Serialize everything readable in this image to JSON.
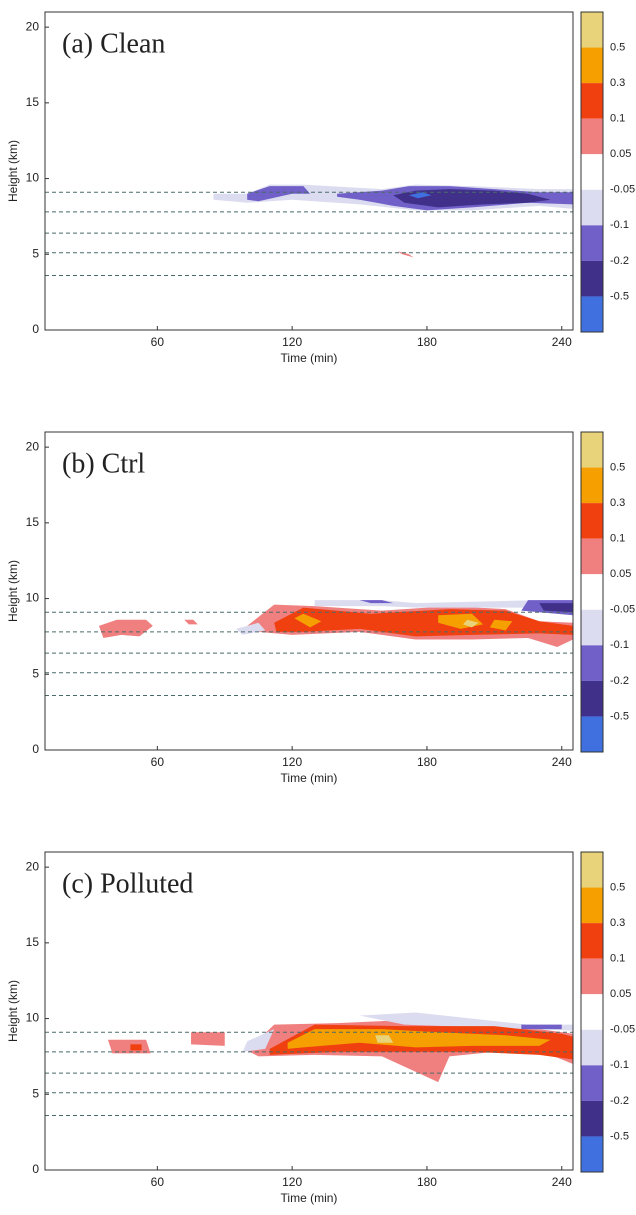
{
  "chart_data": [
    {
      "type": "contour",
      "title": "(a) Clean",
      "xlabel": "Time (min)",
      "ylabel": "Height (km)",
      "xlim": [
        10,
        245
      ],
      "ylim": [
        0,
        21
      ],
      "xticks": [
        60,
        120,
        180,
        240
      ],
      "yticks": [
        0,
        5,
        10,
        15,
        20
      ],
      "hlines": [
        9.1,
        7.8,
        6.4,
        5.1,
        3.6
      ],
      "hline_color": "#4a6a6a",
      "colorbar": {
        "levels": [
          0.5,
          0.3,
          0.1,
          0.05,
          -0.05,
          -0.1,
          -0.2,
          -0.5
        ],
        "colors": [
          "#e8d27a",
          "#f5a000",
          "#f04010",
          "#f08080",
          "#ffffff",
          "#dcdcf0",
          "#7060c8",
          "#40308a",
          "#4070e0"
        ]
      },
      "patches": [
        {
          "value": -0.07,
          "x": [
            85,
            100,
            110,
            125,
            160,
            175,
            200,
            230,
            245,
            245,
            230,
            200,
            175,
            150,
            120,
            100,
            85
          ],
          "y": [
            9.0,
            9.0,
            9.6,
            9.6,
            9.3,
            9.6,
            9.5,
            9.3,
            9.3,
            8.0,
            8.2,
            7.9,
            7.9,
            8.3,
            8.6,
            8.4,
            8.6
          ]
        },
        {
          "value": -0.15,
          "x": [
            100,
            110,
            125,
            128,
            120,
            105,
            100
          ],
          "y": [
            9.0,
            9.5,
            9.5,
            9.0,
            9.0,
            8.5,
            8.6
          ]
        },
        {
          "value": -0.15,
          "x": [
            140,
            160,
            172,
            190,
            210,
            230,
            245,
            245,
            225,
            200,
            180,
            165,
            150,
            140
          ],
          "y": [
            9.0,
            9.2,
            9.5,
            9.5,
            9.3,
            9.1,
            9.1,
            8.3,
            8.4,
            8.1,
            7.9,
            8.2,
            8.6,
            8.8
          ]
        },
        {
          "value": -0.3,
          "x": [
            165,
            175,
            190,
            210,
            225,
            235,
            225,
            205,
            185,
            170
          ],
          "y": [
            8.9,
            9.2,
            9.3,
            9.2,
            9.0,
            8.6,
            8.4,
            8.3,
            8.1,
            8.4
          ]
        },
        {
          "value": -0.6,
          "x": [
            172,
            178,
            182,
            176
          ],
          "y": [
            8.9,
            9.1,
            8.9,
            8.7
          ]
        },
        {
          "value": 0.07,
          "x": [
            167,
            172,
            174,
            169
          ],
          "y": [
            5.2,
            5.0,
            4.8,
            5.0
          ]
        }
      ]
    },
    {
      "type": "contour",
      "title": "(b) Ctrl",
      "xlabel": "Time (min)",
      "ylabel": "Height (km)",
      "xlim": [
        10,
        245
      ],
      "ylim": [
        0,
        21
      ],
      "xticks": [
        60,
        120,
        180,
        240
      ],
      "yticks": [
        0,
        5,
        10,
        15,
        20
      ],
      "hlines": [
        9.1,
        7.8,
        6.4,
        5.1,
        3.6
      ],
      "hline_color": "#4a6a6a",
      "colorbar": {
        "levels": [
          0.5,
          0.3,
          0.1,
          0.05,
          -0.05,
          -0.1,
          -0.2,
          -0.5
        ],
        "colors": [
          "#e8d27a",
          "#f5a000",
          "#f04010",
          "#f08080",
          "#ffffff",
          "#dcdcf0",
          "#7060c8",
          "#40308a",
          "#4070e0"
        ]
      },
      "patches": [
        {
          "value": 0.07,
          "x": [
            34,
            42,
            55,
            58,
            52,
            44,
            36
          ],
          "y": [
            8.2,
            8.6,
            8.6,
            8.2,
            7.5,
            7.6,
            7.4
          ]
        },
        {
          "value": 0.07,
          "x": [
            72,
            76,
            78,
            74
          ],
          "y": [
            8.6,
            8.6,
            8.3,
            8.3
          ]
        },
        {
          "value": 0.07,
          "x": [
            100,
            112,
            130,
            160,
            190,
            215,
            230,
            245,
            245,
            238,
            225,
            200,
            175,
            150,
            120,
            105
          ],
          "y": [
            8.2,
            9.6,
            9.5,
            9.2,
            9.5,
            9.3,
            8.5,
            8.4,
            7.3,
            6.8,
            7.4,
            7.3,
            7.3,
            7.8,
            7.6,
            7.8
          ]
        },
        {
          "value": -0.07,
          "x": [
            95,
            105,
            108,
            98
          ],
          "y": [
            8.0,
            8.4,
            7.9,
            7.6
          ]
        },
        {
          "value": -0.07,
          "x": [
            130,
            160,
            175,
            230,
            245,
            245,
            230,
            175,
            160,
            130
          ],
          "y": [
            9.9,
            9.9,
            9.7,
            9.9,
            9.9,
            9.4,
            9.4,
            9.4,
            9.5,
            9.5
          ]
        },
        {
          "value": -0.15,
          "x": [
            150,
            160,
            165,
            155
          ],
          "y": [
            9.9,
            9.9,
            9.7,
            9.7
          ]
        },
        {
          "value": -0.15,
          "x": [
            225,
            245,
            245,
            222
          ],
          "y": [
            9.9,
            9.9,
            8.9,
            9.2
          ]
        },
        {
          "value": -0.3,
          "x": [
            230,
            245,
            245,
            232
          ],
          "y": [
            9.7,
            9.7,
            9.1,
            9.2
          ]
        },
        {
          "value": 0.2,
          "x": [
            112,
            125,
            155,
            190,
            215,
            230,
            245,
            245,
            230,
            200,
            175,
            150,
            125,
            113
          ],
          "y": [
            8.4,
            9.4,
            9.0,
            9.3,
            9.2,
            8.5,
            8.2,
            7.6,
            7.7,
            7.6,
            7.5,
            8.0,
            7.8,
            7.8
          ]
        },
        {
          "value": 0.4,
          "x": [
            125,
            133,
            128,
            121
          ],
          "y": [
            9.0,
            8.5,
            8.1,
            8.7
          ]
        },
        {
          "value": 0.4,
          "x": [
            185,
            200,
            205,
            195,
            185
          ],
          "y": [
            8.9,
            9.0,
            8.3,
            8.0,
            8.4
          ]
        },
        {
          "value": 0.4,
          "x": [
            210,
            218,
            215,
            208
          ],
          "y": [
            8.6,
            8.5,
            7.9,
            8.1
          ]
        },
        {
          "value": 0.6,
          "x": [
            198,
            203,
            200,
            196
          ],
          "y": [
            8.6,
            8.4,
            8.1,
            8.3
          ]
        }
      ]
    },
    {
      "type": "contour",
      "title": "(c) Polluted",
      "xlabel": "Time (min)",
      "ylabel": "Height (km)",
      "xlim": [
        10,
        245
      ],
      "ylim": [
        0,
        21
      ],
      "xticks": [
        60,
        120,
        180,
        240
      ],
      "yticks": [
        0,
        5,
        10,
        15,
        20
      ],
      "hlines": [
        9.1,
        7.8,
        6.4,
        5.1,
        3.6
      ],
      "hline_color": "#4a6a6a",
      "colorbar": {
        "levels": [
          0.5,
          0.3,
          0.1,
          0.05,
          -0.05,
          -0.1,
          -0.2,
          -0.5
        ],
        "colors": [
          "#e8d27a",
          "#f5a000",
          "#f04010",
          "#f08080",
          "#ffffff",
          "#dcdcf0",
          "#7060c8",
          "#40308a",
          "#4070e0"
        ]
      },
      "patches": [
        {
          "value": 0.07,
          "x": [
            38,
            55,
            57,
            40
          ],
          "y": [
            8.6,
            8.6,
            7.7,
            7.7
          ]
        },
        {
          "value": 0.2,
          "x": [
            48,
            53,
            53,
            48
          ],
          "y": [
            8.3,
            8.3,
            7.9,
            7.9
          ]
        },
        {
          "value": 0.07,
          "x": [
            75,
            90,
            90,
            75
          ],
          "y": [
            9.1,
            9.1,
            8.2,
            8.3
          ]
        },
        {
          "value": 0.07,
          "x": [
            100,
            112,
            140,
            170,
            200,
            230,
            245,
            245,
            235,
            210,
            190,
            185,
            160,
            130,
            105
          ],
          "y": [
            7.9,
            9.6,
            9.7,
            9.9,
            9.5,
            9.3,
            9.0,
            7.0,
            7.6,
            7.8,
            7.5,
            5.8,
            7.5,
            7.6,
            7.5
          ]
        },
        {
          "value": -0.07,
          "x": [
            100,
            112,
            108,
            98
          ],
          "y": [
            8.5,
            9.3,
            8.0,
            7.8
          ]
        },
        {
          "value": -0.07,
          "x": [
            150,
            175,
            225,
            245,
            245,
            170
          ],
          "y": [
            10.2,
            10.4,
            9.6,
            9.6,
            9.2,
            9.6
          ]
        },
        {
          "value": -0.15,
          "x": [
            222,
            240,
            240,
            222
          ],
          "y": [
            9.6,
            9.6,
            9.3,
            9.3
          ]
        },
        {
          "value": 0.2,
          "x": [
            110,
            130,
            170,
            210,
            240,
            245,
            245,
            230,
            200,
            170,
            140,
            110
          ],
          "y": [
            8.0,
            9.6,
            9.5,
            9.5,
            9.0,
            8.8,
            7.3,
            7.6,
            7.8,
            7.8,
            7.8,
            7.6
          ]
        },
        {
          "value": 0.4,
          "x": [
            118,
            130,
            160,
            185,
            215,
            235,
            230,
            200,
            175,
            150,
            125,
            118
          ],
          "y": [
            8.4,
            9.3,
            9.3,
            9.1,
            8.9,
            8.6,
            8.2,
            8.2,
            8.1,
            8.4,
            8.1,
            8.0
          ]
        },
        {
          "value": 0.6,
          "x": [
            157,
            163,
            165,
            158
          ],
          "y": [
            8.9,
            8.9,
            8.4,
            8.4
          ]
        }
      ]
    }
  ]
}
